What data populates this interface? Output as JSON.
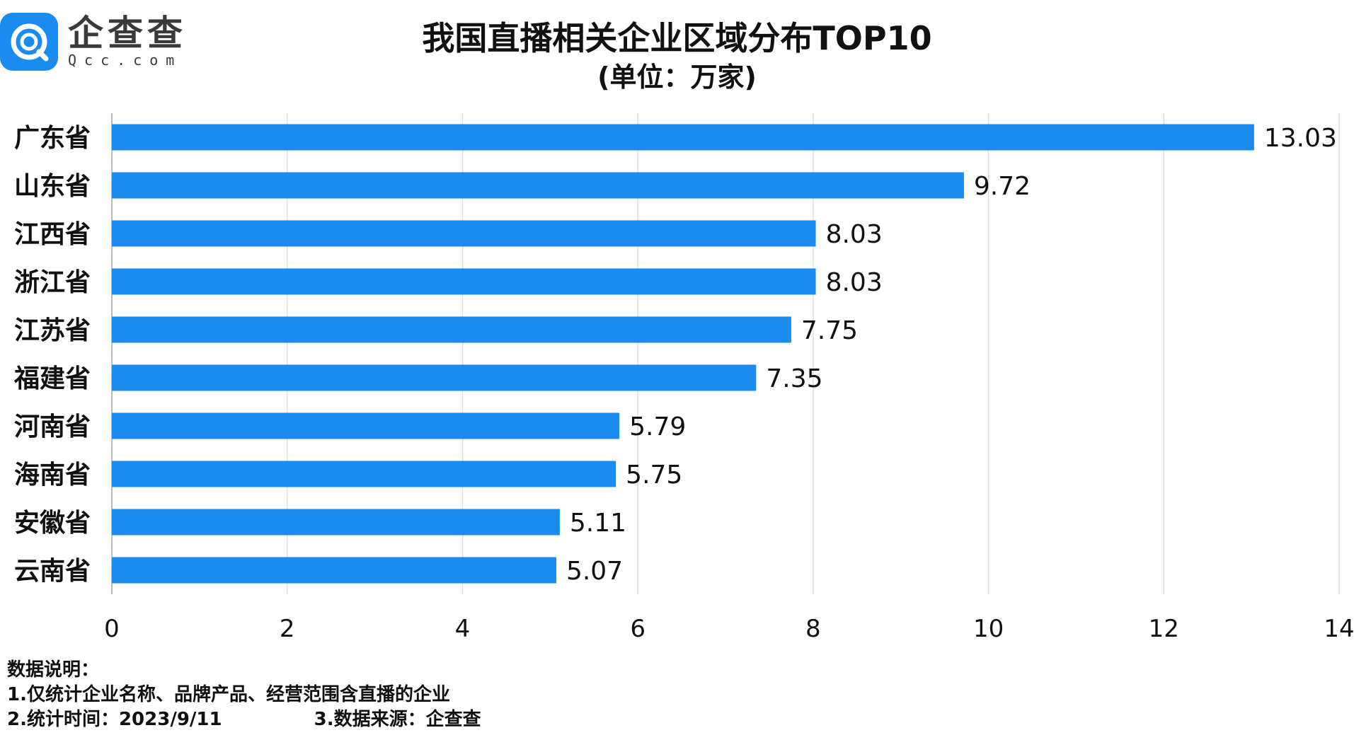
{
  "logo": {
    "name": "企查查",
    "domain": "Qcc.com",
    "icon": "qcc-logo-icon",
    "color": "#1a8cf0"
  },
  "title": "我国直播相关企业区域分布TOP10",
  "subtitle": "(单位：万家)",
  "chart_data": {
    "type": "bar",
    "orientation": "horizontal",
    "categories": [
      "广东省",
      "山东省",
      "江西省",
      "浙江省",
      "江苏省",
      "福建省",
      "河南省",
      "海南省",
      "安徽省",
      "云南省"
    ],
    "values": [
      13.03,
      9.72,
      8.03,
      8.03,
      7.75,
      7.35,
      5.79,
      5.75,
      5.11,
      5.07
    ],
    "value_labels": [
      "13.03",
      "9.72",
      "8.03",
      "8.03",
      "7.75",
      "7.35",
      "5.79",
      "5.75",
      "5.11",
      "5.07"
    ],
    "xlim": [
      0,
      14
    ],
    "x_ticks": [
      "0",
      "2",
      "4",
      "6",
      "8",
      "10",
      "12",
      "14"
    ],
    "bar_color": "#1a8cf0",
    "grid": true
  },
  "notes": {
    "heading": "数据说明：",
    "line1": "1.仅统计企业名称、品牌产品、经营范围含直播的企业",
    "line2a": "2.统计时间：2023/9/11",
    "line2b": "3.数据来源：企查查"
  }
}
